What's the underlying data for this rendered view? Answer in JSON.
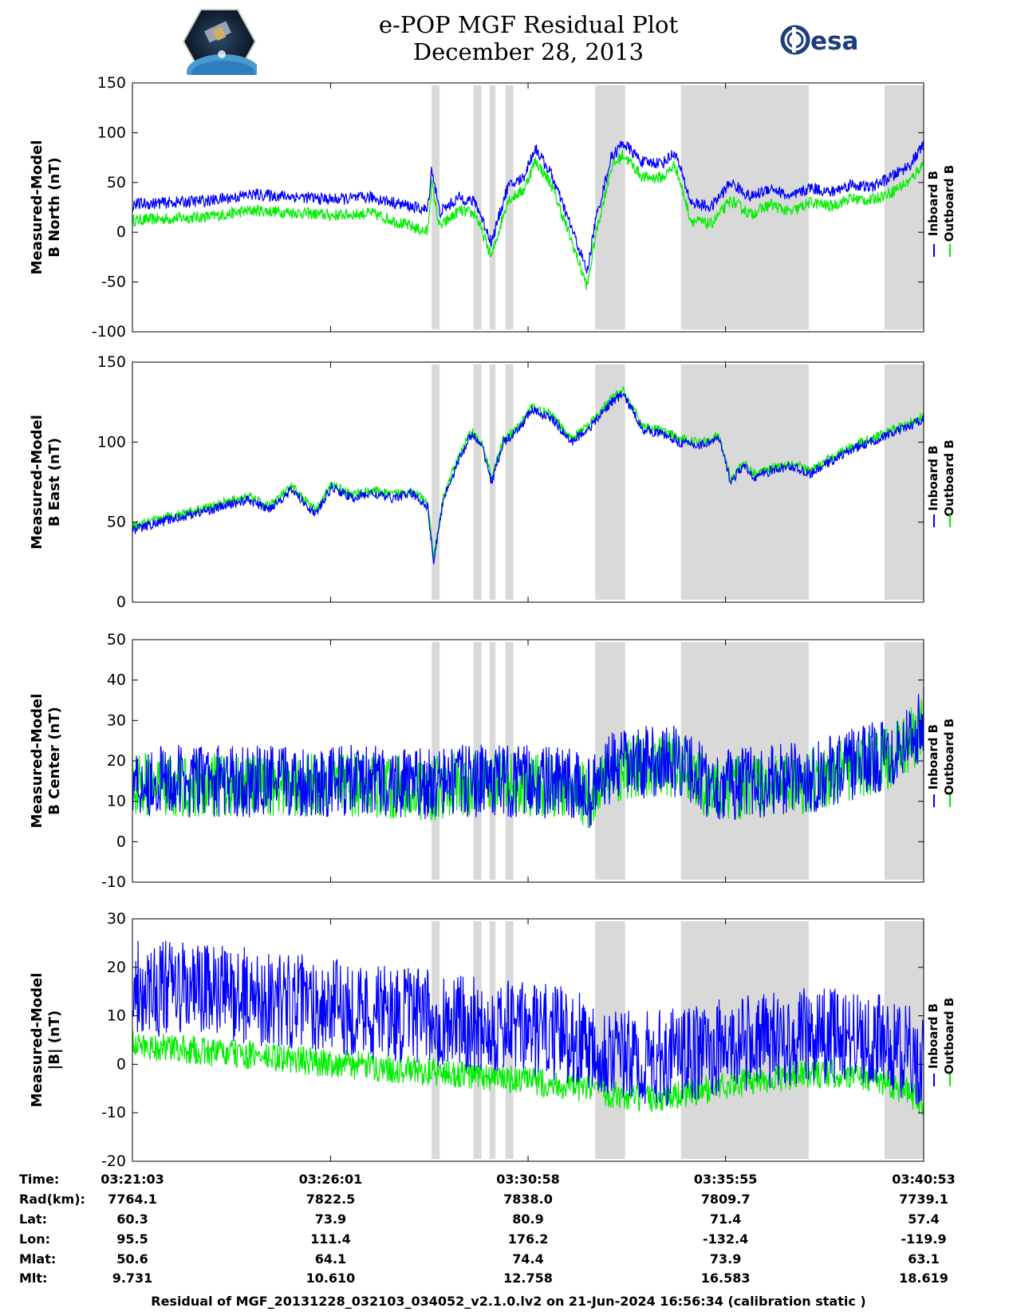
{
  "header": {
    "title_line1": "e-POP MGF Residual Plot",
    "title_line2": "December 28, 2013",
    "logo_left": "cassiope-mission-logo",
    "logo_right_text": "esa"
  },
  "colors": {
    "inboard": "#0000ff",
    "outboard": "#00ee00",
    "shading": "#d9d9d9"
  },
  "chart_data": [
    {
      "type": "line",
      "ylabel": [
        "Measured-Model",
        "B North (nT)"
      ],
      "ylim": [
        -100,
        150
      ],
      "yticks": [
        150,
        100,
        50,
        0,
        -50,
        -100
      ],
      "legend": [
        "Inboard B",
        "Outboard B"
      ],
      "legend_position": "right",
      "x_tick_positions_min": [
        0,
        4.967,
        9.917,
        14.867,
        19.833
      ],
      "shaded_intervals_min": [
        [
          7.5,
          7.7
        ],
        [
          8.55,
          8.75
        ],
        [
          8.95,
          9.1
        ],
        [
          9.35,
          9.55
        ],
        [
          11.6,
          12.35
        ],
        [
          13.75,
          16.95
        ],
        [
          18.85,
          19.83
        ]
      ],
      "series": [
        {
          "name": "Inboard B",
          "x_min": [
            0,
            2,
            3,
            4,
            5,
            6,
            7.4,
            7.5,
            7.7,
            8.2,
            8.6,
            9.0,
            9.4,
            9.8,
            10.1,
            10.5,
            11.0,
            11.4,
            11.6,
            12.0,
            12.3,
            12.8,
            13.3,
            13.6,
            14.0,
            14.5,
            15.0,
            15.5,
            16.0,
            16.5,
            17.0,
            17.5,
            18.0,
            18.5,
            19.0,
            19.5,
            19.83
          ],
          "values": [
            28,
            32,
            38,
            36,
            33,
            35,
            22,
            65,
            20,
            35,
            30,
            -10,
            45,
            55,
            85,
            58,
            5,
            -40,
            10,
            75,
            90,
            70,
            70,
            80,
            30,
            25,
            50,
            35,
            45,
            35,
            45,
            40,
            48,
            45,
            55,
            68,
            88
          ]
        },
        {
          "name": "Outboard B",
          "x_min": [
            0,
            2,
            3,
            4,
            5,
            6,
            7.4,
            7.5,
            7.7,
            8.2,
            8.6,
            9.0,
            9.4,
            9.8,
            10.1,
            10.5,
            11.0,
            11.4,
            11.6,
            12.0,
            12.3,
            12.8,
            13.3,
            13.6,
            14.0,
            14.5,
            15.0,
            15.5,
            16.0,
            16.5,
            17.0,
            17.5,
            18.0,
            18.5,
            19.0,
            19.5,
            19.83
          ],
          "values": [
            12,
            16,
            22,
            20,
            17,
            19,
            0,
            50,
            5,
            22,
            18,
            -25,
            32,
            42,
            72,
            48,
            -8,
            -55,
            -5,
            65,
            78,
            55,
            55,
            68,
            12,
            8,
            32,
            18,
            28,
            20,
            30,
            26,
            34,
            32,
            40,
            52,
            70
          ]
        }
      ]
    },
    {
      "type": "line",
      "ylabel": [
        "Measured-Model",
        "B East (nT)"
      ],
      "ylim": [
        0,
        150
      ],
      "yticks": [
        150,
        100,
        50,
        0
      ],
      "legend": [
        "Inboard B",
        "Outboard B"
      ],
      "legend_position": "right",
      "x_tick_positions_min": [
        0,
        4.967,
        9.917,
        14.867,
        19.833
      ],
      "shaded_intervals_min": [
        [
          7.5,
          7.7
        ],
        [
          8.55,
          8.75
        ],
        [
          8.95,
          9.1
        ],
        [
          9.35,
          9.55
        ],
        [
          11.6,
          12.35
        ],
        [
          13.75,
          16.95
        ],
        [
          18.85,
          19.83
        ]
      ],
      "series": [
        {
          "name": "Inboard B",
          "x_min": [
            0,
            1,
            2,
            2.9,
            3.4,
            4.0,
            4.6,
            5.0,
            5.5,
            6.0,
            6.5,
            7.0,
            7.4,
            7.55,
            7.8,
            8.2,
            8.5,
            8.8,
            9.0,
            9.3,
            9.6,
            10.0,
            10.5,
            11.0,
            11.5,
            12.0,
            12.3,
            12.8,
            13.3,
            13.7,
            14.2,
            14.7,
            15.0,
            15.3,
            15.6,
            16.0,
            16.5,
            17.0,
            17.5,
            18.0,
            18.5,
            19.0,
            19.5,
            19.83
          ],
          "values": [
            45,
            52,
            58,
            64,
            58,
            70,
            55,
            72,
            65,
            68,
            65,
            68,
            60,
            25,
            65,
            90,
            105,
            95,
            75,
            100,
            105,
            120,
            115,
            100,
            110,
            125,
            130,
            108,
            105,
            100,
            98,
            102,
            75,
            85,
            78,
            82,
            85,
            80,
            88,
            95,
            100,
            105,
            110,
            115
          ]
        },
        {
          "name": "Outboard B",
          "x_min": [
            0,
            1,
            2,
            2.9,
            3.4,
            4.0,
            4.6,
            5.0,
            5.5,
            6.0,
            6.5,
            7.0,
            7.4,
            7.55,
            7.8,
            8.2,
            8.5,
            8.8,
            9.0,
            9.3,
            9.6,
            10.0,
            10.5,
            11.0,
            11.5,
            12.0,
            12.3,
            12.8,
            13.3,
            13.7,
            14.2,
            14.7,
            15.0,
            15.3,
            15.6,
            16.0,
            16.5,
            17.0,
            17.5,
            18.0,
            18.5,
            19.0,
            19.5,
            19.83
          ],
          "values": [
            47,
            54,
            60,
            66,
            60,
            72,
            57,
            74,
            67,
            70,
            67,
            70,
            62,
            27,
            67,
            92,
            107,
            97,
            77,
            102,
            107,
            122,
            117,
            102,
            112,
            127,
            132,
            110,
            107,
            102,
            100,
            104,
            77,
            87,
            80,
            84,
            87,
            82,
            90,
            97,
            102,
            107,
            112,
            117
          ]
        }
      ]
    },
    {
      "type": "line",
      "ylabel": [
        "Measured-Model",
        "B Center (nT)"
      ],
      "ylim": [
        -10,
        50
      ],
      "yticks": [
        50,
        40,
        30,
        20,
        10,
        0,
        -10
      ],
      "legend": [
        "Inboard B",
        "Outboard B"
      ],
      "legend_position": "right",
      "x_tick_positions_min": [
        0,
        4.967,
        9.917,
        14.867,
        19.833
      ],
      "shaded_intervals_min": [
        [
          7.5,
          7.7
        ],
        [
          8.55,
          8.75
        ],
        [
          8.95,
          9.1
        ],
        [
          9.35,
          9.55
        ],
        [
          11.6,
          12.35
        ],
        [
          13.75,
          16.95
        ],
        [
          18.85,
          19.83
        ]
      ],
      "series": [
        {
          "name": "Inboard B",
          "x_min": [
            0,
            2,
            4,
            6,
            7.5,
            8,
            9,
            10,
            11,
            11.5,
            12,
            13,
            13.75,
            14.5,
            16,
            17,
            18,
            19,
            19.5,
            19.83
          ],
          "values": [
            15,
            15,
            15,
            15,
            14,
            15,
            15,
            15,
            14,
            12,
            18,
            20,
            20,
            14,
            15,
            16,
            19,
            22,
            26,
            30
          ]
        },
        {
          "name": "Outboard B",
          "x_min": [
            0,
            2,
            4,
            6,
            7.5,
            8,
            9,
            10,
            11,
            11.5,
            12,
            13,
            13.75,
            14.5,
            16,
            17,
            18,
            19,
            19.5,
            19.83
          ],
          "values": [
            14,
            14,
            14,
            14,
            13,
            14,
            14,
            14,
            13,
            11,
            17,
            19,
            19,
            13,
            14,
            15,
            18,
            21,
            25,
            29
          ]
        }
      ]
    },
    {
      "type": "line",
      "ylabel": [
        "Measured-Model",
        "|B| (nT)"
      ],
      "ylim": [
        -20,
        30
      ],
      "yticks": [
        30,
        20,
        10,
        0,
        -10,
        -20
      ],
      "legend": [
        "Inboard B",
        "Outboard B"
      ],
      "legend_position": "right",
      "x_tick_positions_min": [
        0,
        4.967,
        9.917,
        14.867,
        19.833
      ],
      "shaded_intervals_min": [
        [
          7.5,
          7.7
        ],
        [
          8.55,
          8.75
        ],
        [
          8.95,
          9.1
        ],
        [
          9.35,
          9.55
        ],
        [
          11.6,
          12.35
        ],
        [
          13.75,
          16.95
        ],
        [
          18.85,
          19.83
        ]
      ],
      "series": [
        {
          "name": "Inboard B",
          "x_min": [
            0,
            2,
            4,
            6,
            8,
            10,
            11,
            12,
            12.5,
            13,
            14,
            15,
            16,
            17,
            18,
            19,
            19.5,
            19.83
          ],
          "values": [
            16,
            15,
            13,
            11,
            9,
            7,
            6,
            3,
            1,
            1,
            2,
            4,
            5,
            6,
            6,
            4,
            2,
            0
          ]
        },
        {
          "name": "Outboard B",
          "x_min": [
            0,
            2,
            4,
            6,
            8,
            10,
            11,
            12,
            12.5,
            13,
            14,
            15,
            16,
            17,
            18,
            19,
            19.5,
            19.83
          ],
          "values": [
            4,
            2.5,
            1,
            -0.5,
            -2,
            -3.5,
            -4.5,
            -6,
            -7,
            -7,
            -6,
            -4,
            -3,
            -2,
            -2,
            -4,
            -6,
            -8
          ]
        }
      ]
    }
  ],
  "time_axis": {
    "labels": [
      "Time:",
      "Rad(km):",
      "Lat:",
      "Lon:",
      "Mlat:",
      "Mlt:"
    ],
    "columns": [
      [
        "03:21:03",
        "7764.1",
        "60.3",
        "95.5",
        "50.6",
        "9.731"
      ],
      [
        "03:26:01",
        "7822.5",
        "73.9",
        "111.4",
        "64.1",
        "10.610"
      ],
      [
        "03:30:58",
        "7838.0",
        "80.9",
        "176.2",
        "74.4",
        "12.758"
      ],
      [
        "03:35:55",
        "7809.7",
        "71.4",
        "-132.4",
        "73.9",
        "16.583"
      ],
      [
        "03:40:53",
        "7739.1",
        "57.4",
        "-119.9",
        "63.1",
        "18.619"
      ]
    ]
  },
  "footer_text": "Residual of MGF_20131228_032103_034052_v2.1.0.lv2 on 21-Jun-2024 16:56:34 (calibration static )"
}
